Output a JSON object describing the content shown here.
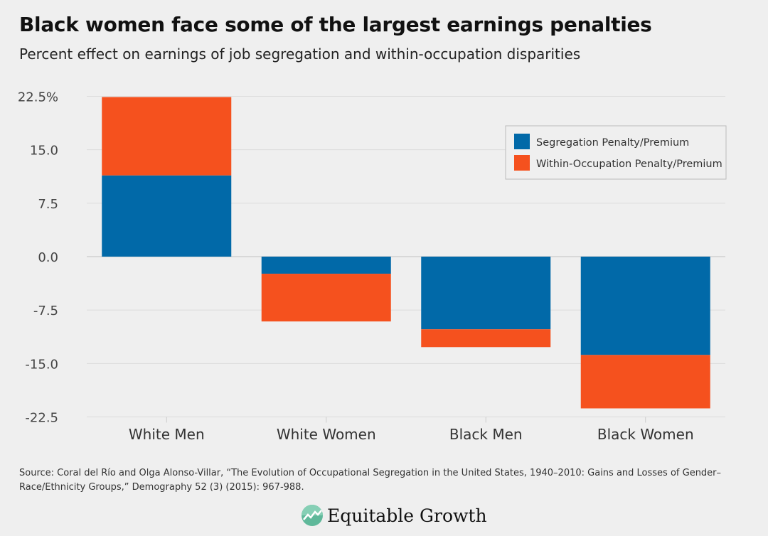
{
  "title": "Black women face some of the largest earnings penalties",
  "subtitle": "Percent effect on earnings of job segregation and within-occupation disparities",
  "source": "Source: Coral del Río and Olga Alonso-Villar, “The Evolution of Occupational Segregation in the United States, 1940–2010: Gains and Losses of Gender–Race/Ethnicity Groups,” Demography 52 (3) (2015): 967-988.",
  "logo_text": "Equitable Growth",
  "chart_data": {
    "type": "bar",
    "stacked": true,
    "categories": [
      "White Men",
      "White Women",
      "Black Men",
      "Black Women"
    ],
    "series": [
      {
        "name": "Segregation Penalty/Premium",
        "color": "#0169a8",
        "values": [
          11.4,
          -2.4,
          -10.2,
          -13.8
        ]
      },
      {
        "name": "Within-Occupation Penalty/Premium",
        "color": "#f5511e",
        "values": [
          11.0,
          -6.7,
          -2.5,
          -7.5
        ]
      }
    ],
    "yticks": [
      "22.5%",
      "15.0",
      "7.5",
      "0.0",
      "-7.5",
      "-15.0",
      "-22.5"
    ],
    "ytick_values": [
      22.5,
      15,
      7.5,
      0,
      -7.5,
      -15,
      -22.5
    ],
    "ylim": [
      -22.5,
      22.5
    ],
    "grid": true,
    "legend": "top-right"
  }
}
